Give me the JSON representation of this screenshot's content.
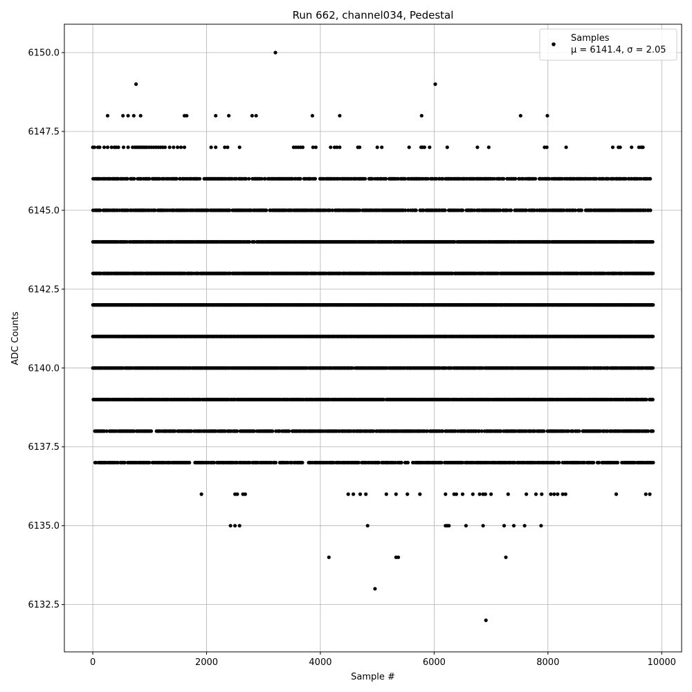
{
  "chart_data": {
    "type": "scatter",
    "title": "Run 662, channel034, Pedestal",
    "xlabel": "Sample #",
    "ylabel": "ADC Counts",
    "xlim": [
      -500,
      10350
    ],
    "ylim": [
      6131.0,
      6150.9
    ],
    "xticks": [
      0,
      2000,
      4000,
      6000,
      8000,
      10000
    ],
    "xtick_labels": [
      "0",
      "2000",
      "4000",
      "6000",
      "8000",
      "10000"
    ],
    "yticks": [
      6132.5,
      6135.0,
      6137.5,
      6140.0,
      6142.5,
      6145.0,
      6147.5,
      6150.0
    ],
    "ytick_labels": [
      "6132.5",
      "6135.0",
      "6137.5",
      "6140.0",
      "6142.5",
      "6145.0",
      "6147.5",
      "6150.0"
    ],
    "grid": true,
    "legend_position": "top-right",
    "series": [
      {
        "name": "Samples",
        "color": "#000000",
        "marker": "circle",
        "stats_label": "μ = 6141.4, σ = 2.05",
        "mean": 6141.4,
        "sigma": 2.05,
        "n_samples": 9850,
        "levels": [
          {
            "y": 6150,
            "x": [
              3210
            ]
          },
          {
            "y": 6149,
            "x": [
              760,
              6020
            ]
          },
          {
            "y": 6148,
            "x": [
              260,
              530,
              620,
              720,
              840,
              1610,
              1650,
              2160,
              2390,
              2800,
              2870,
              3860,
              4340,
              5780,
              7520,
              7990
            ]
          },
          {
            "y": 6147,
            "x": [
              0,
              30,
              90,
              120,
              200,
              260,
              330,
              380,
              410,
              450,
              540,
              620,
              700,
              740,
              770,
              800,
              830,
              860,
              890,
              920,
              950,
              990,
              1030,
              1070,
              1110,
              1150,
              1190,
              1230,
              1270,
              1350,
              1420,
              1490,
              1550,
              1610,
              2080,
              2160,
              2320,
              2370,
              2580,
              3530,
              3570,
              3610,
              3650,
              3690,
              3870,
              3920,
              4180,
              4250,
              4290,
              4340,
              4660,
              4690,
              5000,
              5080,
              5560,
              5770,
              5800,
              5830,
              5920,
              6230,
              6760,
              6960,
              7940,
              7980,
              8320,
              9140,
              9240,
              9270,
              9470,
              9600,
              9640,
              9670
            ]
          },
          {
            "y": 6146,
            "x": "band:0:9800:0.72:1"
          },
          {
            "y": 6145,
            "x": "band:0:9800:0.80:2"
          },
          {
            "y": 6144,
            "x": "band:0:9850:0.92:3"
          },
          {
            "y": 6143,
            "x": "band:0:9850:0.95:4"
          },
          {
            "y": 6142,
            "x": "band:0:9850:1.00:5"
          },
          {
            "y": 6141,
            "x": "band:0:9850:1.00:6"
          },
          {
            "y": 6140,
            "x": "band:0:9850:0.95:7"
          },
          {
            "y": 6139,
            "x": "band:0:9850:0.92:8"
          },
          {
            "y": 6138,
            "x": "band:0:9850:0.78:9"
          },
          {
            "y": 6137,
            "x": "band:0:9850:0.72:10"
          },
          {
            "y": 6136,
            "x": [
              1910,
              2500,
              2540,
              2640,
              2680,
              4490,
              4580,
              4700,
              4800,
              5160,
              5330,
              5530,
              5750,
              6200,
              6350,
              6390,
              6500,
              6680,
              6800,
              6860,
              6900,
              7000,
              7300,
              7620,
              7790,
              7890,
              8050,
              8110,
              8170,
              8260,
              8310,
              9200,
              9720,
              9790
            ]
          },
          {
            "y": 6135,
            "x": [
              2420,
              2500,
              2580,
              4830,
              6200,
              6230,
              6260,
              6560,
              6860,
              7230,
              7400,
              7590,
              7880
            ]
          },
          {
            "y": 6134,
            "x": [
              4150,
              5330,
              5370,
              7260
            ]
          },
          {
            "y": 6133,
            "x": [
              4960
            ]
          },
          {
            "y": 6132,
            "x": [
              6910
            ]
          }
        ]
      }
    ]
  }
}
